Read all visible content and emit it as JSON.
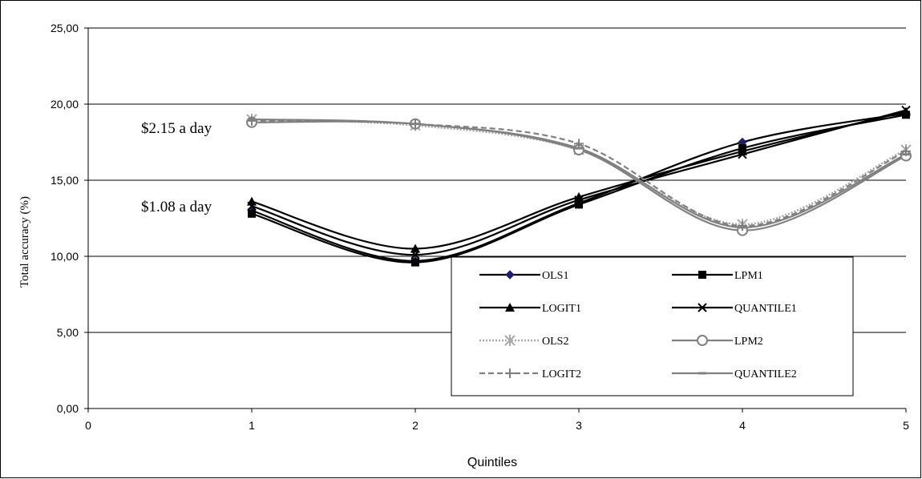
{
  "chart_data": {
    "type": "line",
    "title": "",
    "xlabel": "Quintiles",
    "ylabel": "Total accuracy (%)",
    "xlim": [
      0,
      5
    ],
    "ylim": [
      0,
      25
    ],
    "x_ticks": [
      "0",
      "1",
      "2",
      "3",
      "4",
      "5"
    ],
    "y_ticks": [
      "0,00",
      "5,00",
      "10,00",
      "15,00",
      "20,00",
      "25,00"
    ],
    "grid": "horizontal",
    "legend_position": "bottom-right",
    "annotations": [
      {
        "text": "$2.15 a day"
      },
      {
        "text": "$1.08 a day"
      }
    ],
    "x": [
      1,
      2,
      3,
      4,
      5
    ],
    "series": [
      {
        "name": "OLS1",
        "group": 1,
        "values": [
          13.0,
          9.7,
          13.5,
          17.5,
          19.4
        ],
        "color": "#000000",
        "marker": "diamond",
        "marker_color": "#1f1f6e",
        "dash": "solid"
      },
      {
        "name": "LPM1",
        "group": 1,
        "values": [
          12.8,
          9.6,
          13.4,
          17.1,
          19.3
        ],
        "color": "#000000",
        "marker": "square",
        "dash": "solid"
      },
      {
        "name": "LOGIT1",
        "group": 1,
        "values": [
          13.6,
          10.5,
          13.9,
          16.9,
          19.5
        ],
        "color": "#000000",
        "marker": "triangle",
        "dash": "solid"
      },
      {
        "name": "QUANTILE1",
        "group": 1,
        "values": [
          13.3,
          10.1,
          13.7,
          16.7,
          19.6
        ],
        "color": "#000000",
        "marker": "x",
        "dash": "solid"
      },
      {
        "name": "OLS2",
        "group": 2,
        "values": [
          19.0,
          18.6,
          17.0,
          12.1,
          17.0
        ],
        "color": "#a8a8a8",
        "marker": "asterisk",
        "dash": "dotted"
      },
      {
        "name": "LPM2",
        "group": 2,
        "values": [
          18.8,
          18.7,
          17.0,
          11.7,
          16.6
        ],
        "color": "#808080",
        "marker": "circle",
        "dash": "solid"
      },
      {
        "name": "LOGIT2",
        "group": 2,
        "values": [
          18.9,
          18.7,
          17.4,
          12.0,
          16.9
        ],
        "color": "#808080",
        "marker": "plus",
        "dash": "dashed"
      },
      {
        "name": "QUANTILE2",
        "group": 2,
        "values": [
          19.0,
          18.7,
          17.1,
          11.9,
          16.7
        ],
        "color": "#808080",
        "marker": "dash",
        "dash": "solid"
      }
    ]
  }
}
